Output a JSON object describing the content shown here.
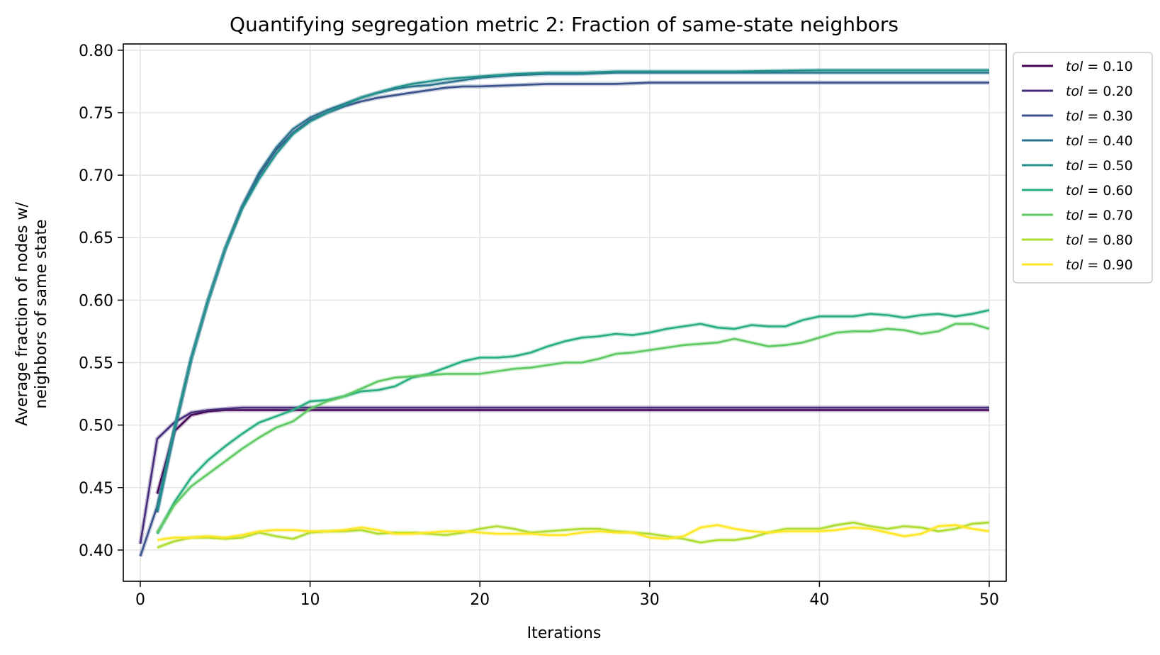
{
  "chart_data": {
    "type": "line",
    "title": "Quantifying segregation metric 2: Fraction of same-state neighbors",
    "xlabel": "Iterations",
    "ylabel_line1": "Average fraction of nodes w/",
    "ylabel_line2": "neighbors of same state",
    "xlim": [
      -1,
      51
    ],
    "ylim": [
      0.375,
      0.805
    ],
    "xticks": [
      0,
      10,
      20,
      30,
      40,
      50
    ],
    "xtick_labels": [
      "0",
      "10",
      "20",
      "30",
      "40",
      "50"
    ],
    "yticks": [
      0.4,
      0.45,
      0.5,
      0.55,
      0.6,
      0.65,
      0.7,
      0.75,
      0.8
    ],
    "ytick_labels": [
      "0.40",
      "0.45",
      "0.50",
      "0.55",
      "0.60",
      "0.65",
      "0.70",
      "0.75",
      "0.80"
    ],
    "grid": true,
    "legend_position": "outside-top-right",
    "legend_prefix": "tol",
    "series": [
      {
        "name": "= 0.10",
        "color": "#440154",
        "x": [
          1,
          2,
          3,
          4,
          5,
          6,
          7,
          8,
          9,
          10,
          12,
          15,
          20,
          25,
          30,
          35,
          40,
          45,
          50
        ],
        "values": [
          0.445,
          0.495,
          0.508,
          0.511,
          0.512,
          0.512,
          0.512,
          0.512,
          0.512,
          0.512,
          0.512,
          0.512,
          0.512,
          0.512,
          0.512,
          0.512,
          0.512,
          0.512,
          0.512
        ]
      },
      {
        "name": "= 0.20",
        "color": "#472d7b",
        "x": [
          0,
          1,
          2,
          3,
          4,
          5,
          6,
          7,
          8,
          9,
          10,
          15,
          20,
          25,
          30,
          35,
          40,
          45,
          50
        ],
        "values": [
          0.405,
          0.489,
          0.502,
          0.51,
          0.512,
          0.513,
          0.514,
          0.514,
          0.514,
          0.514,
          0.514,
          0.514,
          0.514,
          0.514,
          0.514,
          0.514,
          0.514,
          0.514,
          0.514
        ]
      },
      {
        "name": "= 0.30",
        "color": "#3b528b",
        "x": [
          0,
          1,
          2,
          3,
          4,
          5,
          6,
          7,
          8,
          9,
          10,
          11,
          12,
          13,
          14,
          15,
          16,
          17,
          18,
          19,
          20,
          22,
          24,
          26,
          28,
          30,
          35,
          40,
          45,
          50
        ],
        "values": [
          0.395,
          0.435,
          0.495,
          0.553,
          0.6,
          0.641,
          0.675,
          0.7,
          0.72,
          0.734,
          0.744,
          0.75,
          0.755,
          0.759,
          0.762,
          0.764,
          0.766,
          0.768,
          0.77,
          0.771,
          0.771,
          0.772,
          0.773,
          0.773,
          0.773,
          0.774,
          0.774,
          0.774,
          0.774,
          0.774
        ]
      },
      {
        "name": "= 0.40",
        "color": "#2c728e",
        "x": [
          1,
          2,
          3,
          4,
          5,
          6,
          7,
          8,
          9,
          10,
          11,
          12,
          13,
          14,
          15,
          16,
          17,
          18,
          19,
          20,
          22,
          24,
          26,
          28,
          30,
          35,
          40,
          45,
          50
        ],
        "values": [
          0.43,
          0.495,
          0.553,
          0.6,
          0.641,
          0.675,
          0.702,
          0.722,
          0.737,
          0.746,
          0.752,
          0.757,
          0.762,
          0.766,
          0.769,
          0.771,
          0.772,
          0.774,
          0.776,
          0.778,
          0.78,
          0.781,
          0.781,
          0.782,
          0.782,
          0.782,
          0.782,
          0.782,
          0.782
        ]
      },
      {
        "name": "= 0.50",
        "color": "#21918c",
        "x": [
          1,
          2,
          3,
          4,
          5,
          6,
          7,
          8,
          9,
          10,
          11,
          12,
          13,
          14,
          15,
          16,
          17,
          18,
          19,
          20,
          22,
          24,
          26,
          28,
          30,
          35,
          40,
          45,
          50
        ],
        "values": [
          0.432,
          0.497,
          0.553,
          0.6,
          0.641,
          0.673,
          0.697,
          0.717,
          0.733,
          0.743,
          0.75,
          0.756,
          0.762,
          0.766,
          0.77,
          0.773,
          0.775,
          0.777,
          0.778,
          0.779,
          0.781,
          0.782,
          0.782,
          0.783,
          0.783,
          0.783,
          0.784,
          0.784,
          0.784
        ]
      },
      {
        "name": "= 0.60",
        "color": "#27ad81",
        "x": [
          1,
          2,
          3,
          4,
          5,
          6,
          7,
          8,
          9,
          10,
          11,
          12,
          13,
          14,
          15,
          16,
          17,
          18,
          19,
          20,
          21,
          22,
          23,
          24,
          25,
          26,
          27,
          28,
          29,
          30,
          31,
          32,
          33,
          34,
          35,
          36,
          37,
          38,
          39,
          40,
          41,
          42,
          43,
          44,
          45,
          46,
          47,
          48,
          49,
          50
        ],
        "values": [
          0.413,
          0.438,
          0.458,
          0.472,
          0.483,
          0.493,
          0.502,
          0.507,
          0.512,
          0.519,
          0.52,
          0.523,
          0.527,
          0.528,
          0.531,
          0.538,
          0.541,
          0.546,
          0.551,
          0.554,
          0.554,
          0.555,
          0.558,
          0.563,
          0.567,
          0.57,
          0.571,
          0.573,
          0.572,
          0.574,
          0.577,
          0.579,
          0.581,
          0.578,
          0.577,
          0.58,
          0.579,
          0.579,
          0.584,
          0.587,
          0.587,
          0.587,
          0.589,
          0.588,
          0.586,
          0.588,
          0.589,
          0.587,
          0.589,
          0.592
        ]
      },
      {
        "name": "= 0.70",
        "color": "#5ec962",
        "x": [
          1,
          2,
          3,
          4,
          5,
          6,
          7,
          8,
          9,
          10,
          11,
          12,
          13,
          14,
          15,
          16,
          17,
          18,
          19,
          20,
          21,
          22,
          23,
          24,
          25,
          26,
          27,
          28,
          29,
          30,
          31,
          32,
          33,
          34,
          35,
          36,
          37,
          38,
          39,
          40,
          41,
          42,
          43,
          44,
          45,
          46,
          47,
          48,
          49,
          50
        ],
        "values": [
          0.414,
          0.436,
          0.451,
          0.461,
          0.471,
          0.481,
          0.49,
          0.498,
          0.503,
          0.513,
          0.519,
          0.523,
          0.529,
          0.535,
          0.538,
          0.539,
          0.54,
          0.541,
          0.541,
          0.541,
          0.543,
          0.545,
          0.546,
          0.548,
          0.55,
          0.55,
          0.553,
          0.557,
          0.558,
          0.56,
          0.562,
          0.564,
          0.565,
          0.566,
          0.569,
          0.566,
          0.563,
          0.564,
          0.566,
          0.57,
          0.574,
          0.575,
          0.575,
          0.577,
          0.576,
          0.573,
          0.575,
          0.581,
          0.581,
          0.577
        ]
      },
      {
        "name": "= 0.80",
        "color": "#addc30",
        "x": [
          1,
          2,
          3,
          4,
          5,
          6,
          7,
          8,
          9,
          10,
          11,
          12,
          13,
          14,
          15,
          16,
          17,
          18,
          19,
          20,
          21,
          22,
          23,
          24,
          25,
          26,
          27,
          28,
          29,
          30,
          31,
          32,
          33,
          34,
          35,
          36,
          37,
          38,
          39,
          40,
          41,
          42,
          43,
          44,
          45,
          46,
          47,
          48,
          49,
          50
        ],
        "values": [
          0.402,
          0.407,
          0.41,
          0.41,
          0.409,
          0.41,
          0.414,
          0.411,
          0.409,
          0.414,
          0.415,
          0.415,
          0.416,
          0.413,
          0.414,
          0.414,
          0.413,
          0.412,
          0.414,
          0.417,
          0.419,
          0.417,
          0.414,
          0.415,
          0.416,
          0.417,
          0.417,
          0.415,
          0.414,
          0.413,
          0.411,
          0.409,
          0.406,
          0.408,
          0.408,
          0.41,
          0.414,
          0.417,
          0.417,
          0.417,
          0.42,
          0.422,
          0.419,
          0.417,
          0.419,
          0.418,
          0.415,
          0.417,
          0.421,
          0.422
        ]
      },
      {
        "name": "= 0.90",
        "color": "#fde725",
        "x": [
          1,
          2,
          3,
          4,
          5,
          6,
          7,
          8,
          9,
          10,
          11,
          12,
          13,
          14,
          15,
          16,
          17,
          18,
          19,
          20,
          21,
          22,
          23,
          24,
          25,
          26,
          27,
          28,
          29,
          30,
          31,
          32,
          33,
          34,
          35,
          36,
          37,
          38,
          39,
          40,
          41,
          42,
          43,
          44,
          45,
          46,
          47,
          48,
          49,
          50
        ],
        "values": [
          0.408,
          0.41,
          0.41,
          0.411,
          0.41,
          0.412,
          0.415,
          0.416,
          0.416,
          0.415,
          0.415,
          0.416,
          0.418,
          0.416,
          0.413,
          0.413,
          0.414,
          0.415,
          0.415,
          0.414,
          0.413,
          0.413,
          0.413,
          0.412,
          0.412,
          0.414,
          0.415,
          0.414,
          0.414,
          0.41,
          0.409,
          0.411,
          0.418,
          0.42,
          0.417,
          0.415,
          0.414,
          0.415,
          0.415,
          0.415,
          0.416,
          0.418,
          0.417,
          0.414,
          0.411,
          0.413,
          0.419,
          0.42,
          0.417,
          0.415
        ]
      }
    ]
  }
}
